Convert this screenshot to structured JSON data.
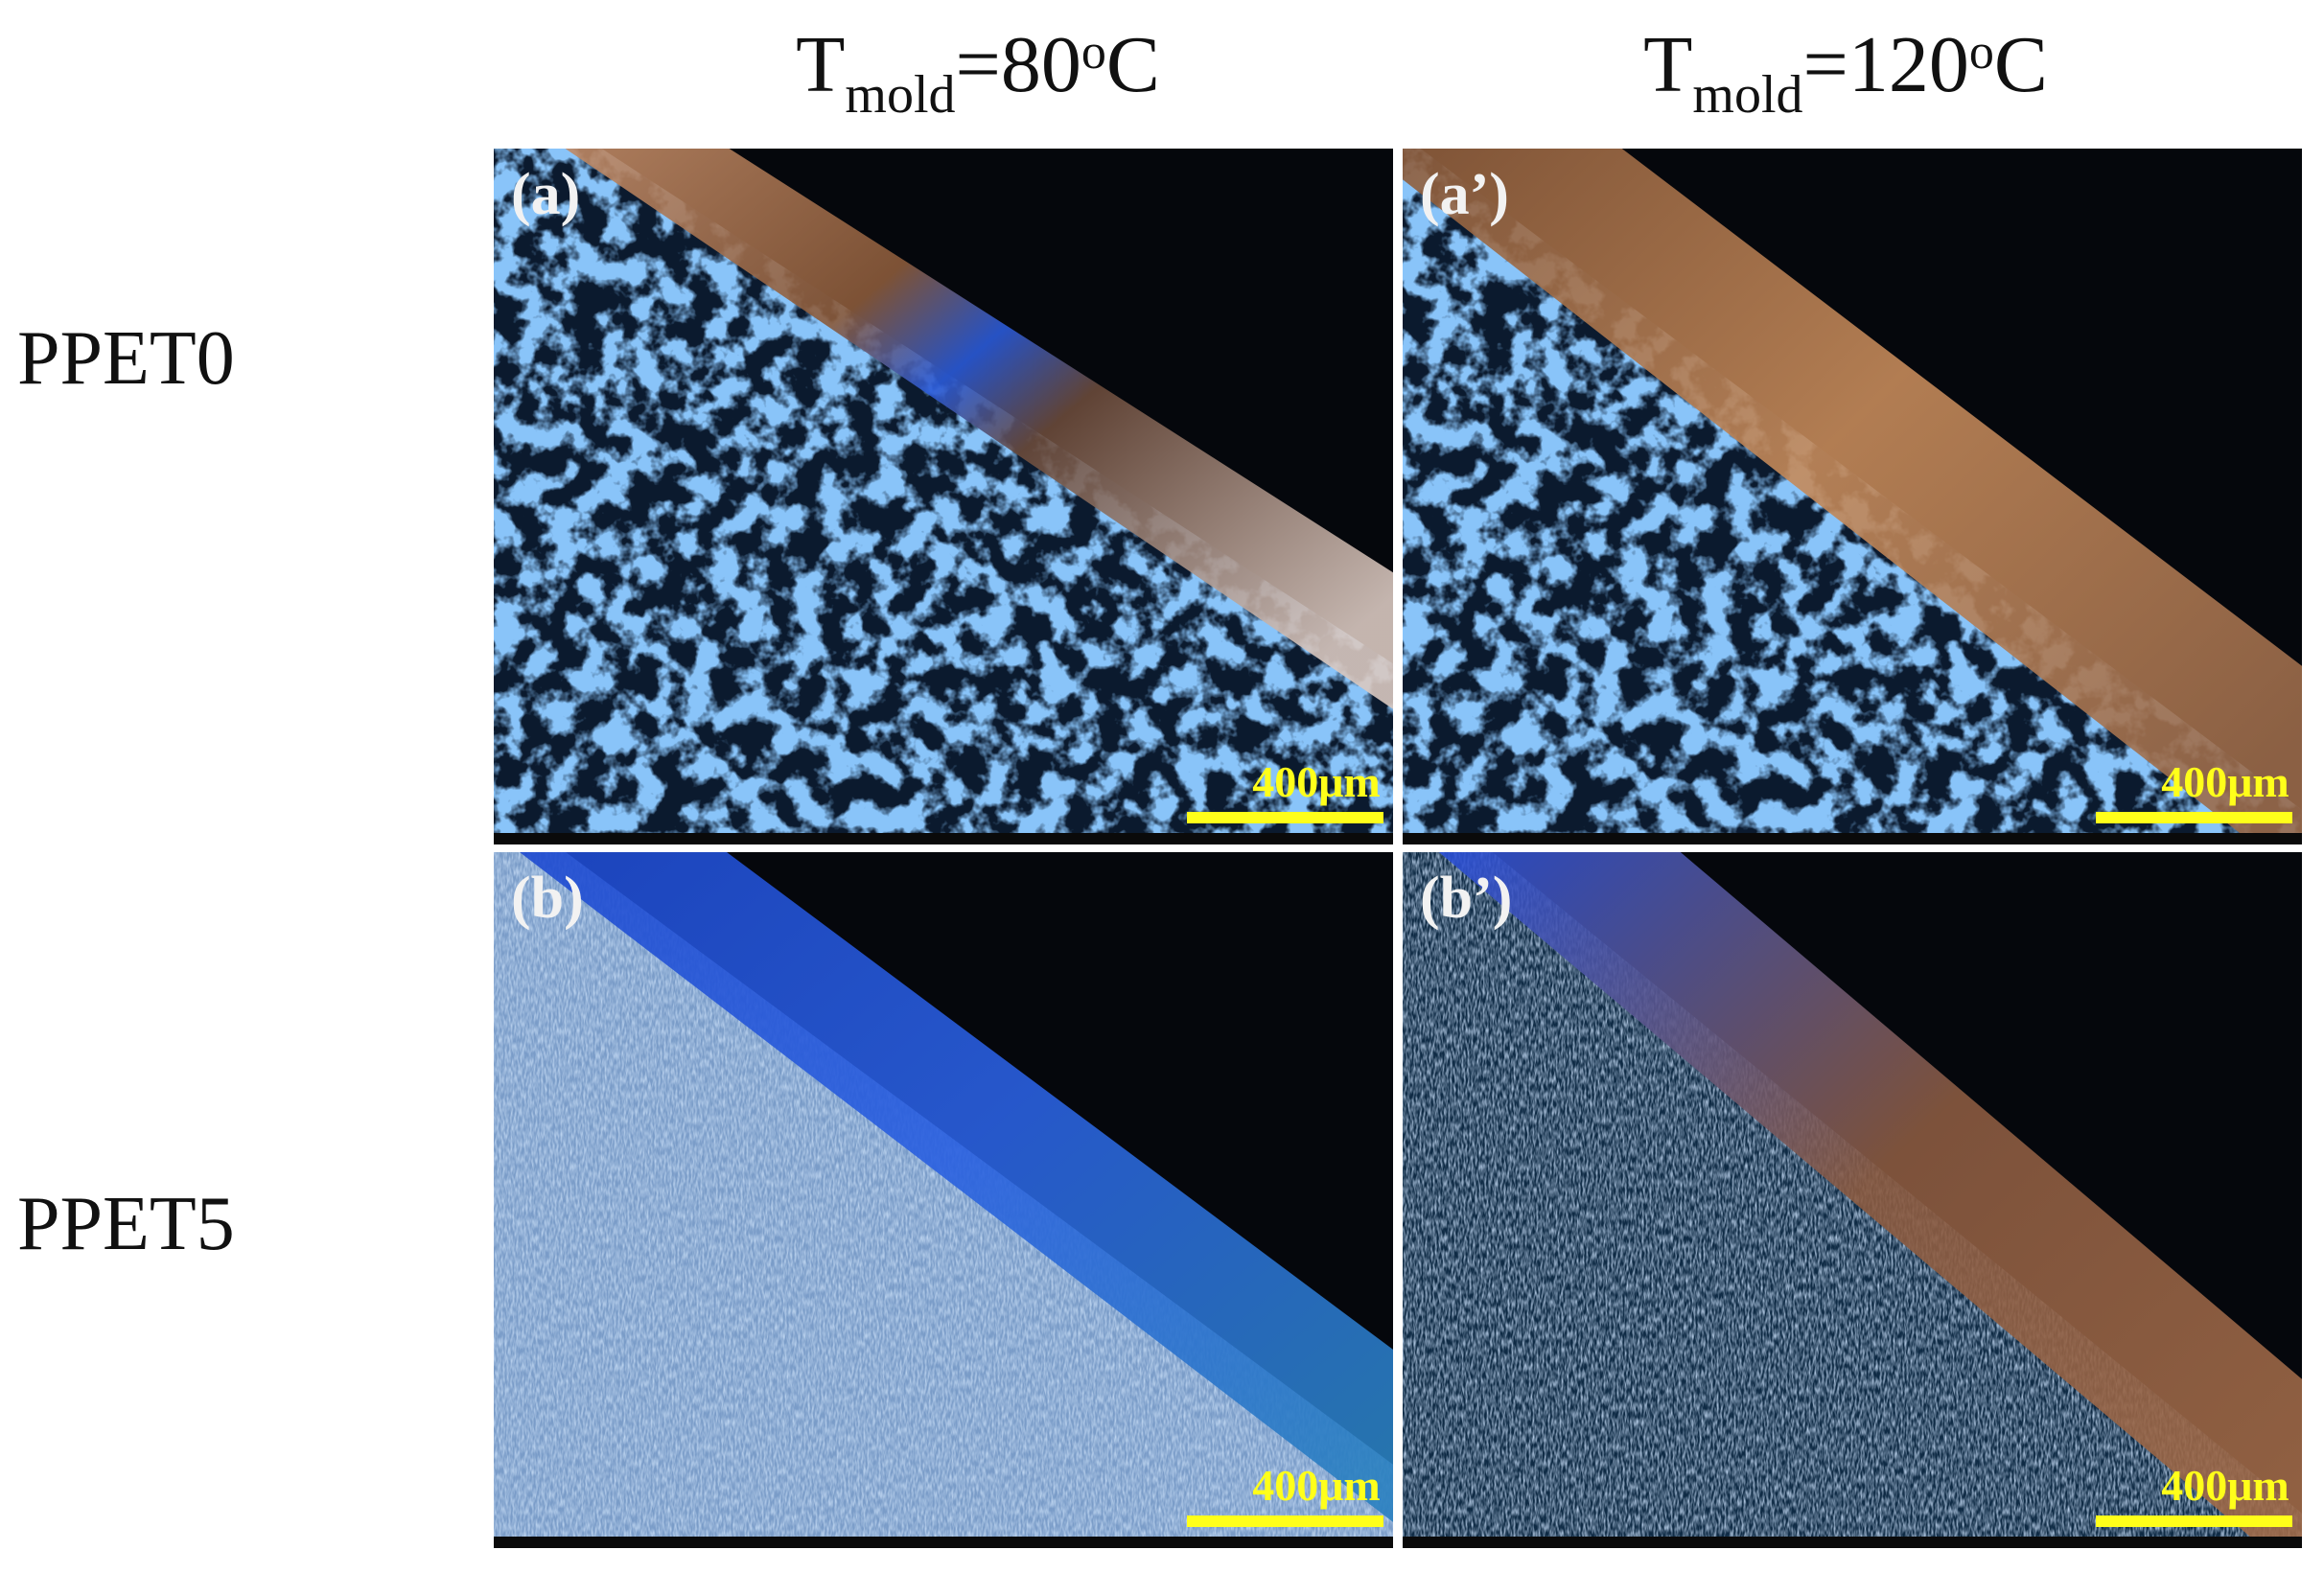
{
  "columns": [
    {
      "symbol": "T",
      "subscript": "mold",
      "value": "=80",
      "superscript": "o",
      "unit": "C"
    },
    {
      "symbol": "T",
      "subscript": "mold",
      "value": "=120",
      "superscript": "o",
      "unit": "C"
    }
  ],
  "rows": [
    "PPET0",
    "PPET5"
  ],
  "panels": [
    {
      "label": "(a)",
      "scale_bar": "400μm"
    },
    {
      "label": "(a’)",
      "scale_bar": "400μm"
    },
    {
      "label": "(b)",
      "scale_bar": "400μm"
    },
    {
      "label": "(b’)",
      "scale_bar": "400μm"
    }
  ]
}
